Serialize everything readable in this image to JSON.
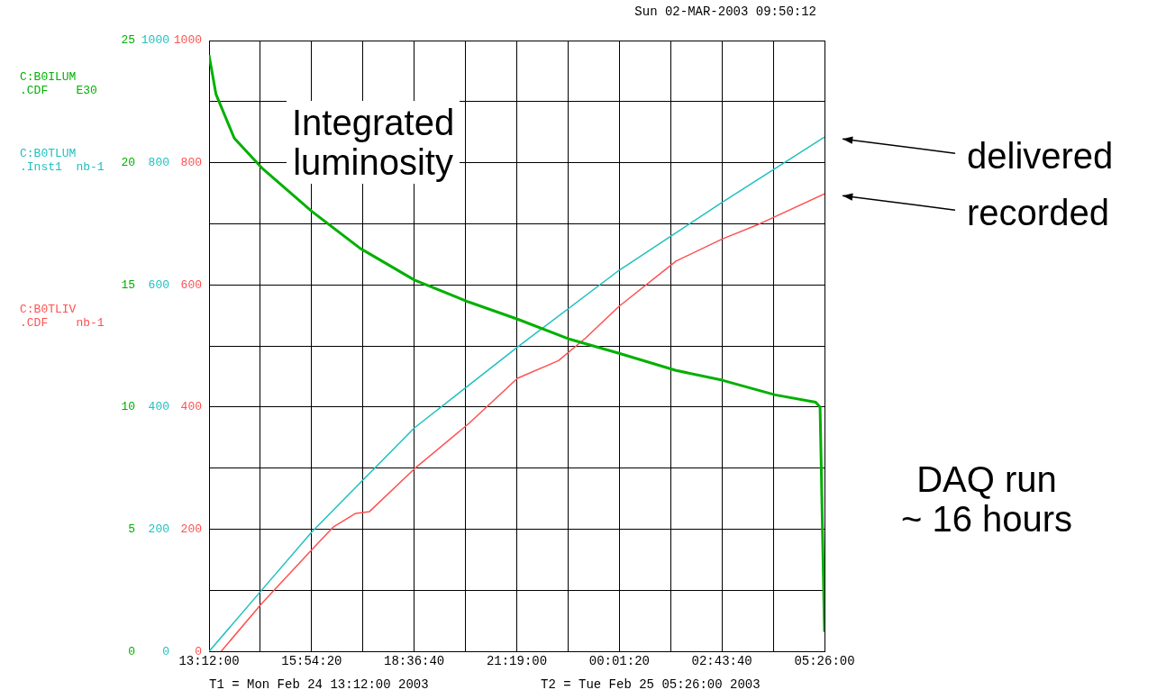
{
  "chart_data": {
    "type": "line",
    "ylabel": "C:B0ILUM\n.CDF    E30",
    "annotations": [
      "Sun 02-MAR-2003 09:50:12",
      "T1 = Mon Feb 24 13:12:00 2003",
      "T2 = Tue Feb 25 05:26:00 2003",
      "Integrated\nluminosity",
      "DAQ run\n~ 16 hours",
      "C:B0TLUM\n.Inst1  nb-1",
      "C:B0TLIV\n.CDF    nb-1"
    ],
    "xlim": [
      "2003-02-24T13:12:00",
      "2003-02-25T05:26:00"
    ],
    "xticks": [
      {
        "value": "2003-02-24T13:12:00",
        "label": "13:12:00"
      },
      {
        "value": "2003-02-24T14:33:10",
        "label": null
      },
      {
        "value": "2003-02-24T15:54:20",
        "label": "15:54:20"
      },
      {
        "value": "2003-02-24T17:15:30",
        "label": null
      },
      {
        "value": "2003-02-24T18:36:40",
        "label": "18:36:40"
      },
      {
        "value": "2003-02-24T19:57:50",
        "label": null
      },
      {
        "value": "2003-02-24T21:19:00",
        "label": "21:19:00"
      },
      {
        "value": "2003-02-24T22:40:10",
        "label": null
      },
      {
        "value": "2003-02-25T00:01:20",
        "label": "00:01:20"
      },
      {
        "value": "2003-02-25T01:22:30",
        "label": null
      },
      {
        "value": "2003-02-25T02:43:40",
        "label": "02:43:40"
      },
      {
        "value": "2003-02-25T04:04:50",
        "label": null
      },
      {
        "value": "2003-02-25T05:26:00",
        "label": "05:26:00"
      }
    ],
    "ylim": [
      0,
      25
    ],
    "yticks": [
      0,
      {
        "value": 2.5,
        "label": null
      },
      5,
      {
        "value": 7.5,
        "label": null
      },
      10,
      {
        "value": 12.5,
        "label": null
      },
      15,
      {
        "value": 17.5,
        "label": null
      },
      20,
      {
        "value": 22.5,
        "label": null
      },
      25
    ],
    "y3lim": [
      0,
      1000
    ],
    "y3ticks": [
      0,
      200,
      400,
      600,
      800,
      1000
    ],
    "y2lim": [
      0,
      1000
    ],
    "y2ticks": [
      0,
      200,
      400,
      600,
      800,
      1000
    ],
    "grid": true,
    "legend": false,
    "marker": "none",
    "line_style": "solid",
    "series": [
      {
        "color": "#00b000",
        "axis": "y",
        "x": [
          "2003-02-24T13:12",
          "2003-02-24T13:23",
          "2003-02-24T13:52",
          "2003-02-24T14:35",
          "2003-02-24T15:55",
          "2003-02-24T17:11",
          "2003-02-24T18:37",
          "2003-02-24T20:03",
          "2003-02-24T21:20",
          "2003-02-24T22:40",
          "2003-02-25T00:01",
          "2003-02-25T01:31",
          "2003-02-25T02:44",
          "2003-02-25T04:08",
          "2003-02-25T05:12",
          "2003-02-25T05:19",
          "2003-02-25T05:22",
          "2003-02-25T05:26"
        ],
        "values": [
          24.4,
          22.8,
          21.0,
          19.8,
          18.0,
          16.5,
          15.2,
          14.3,
          13.6,
          12.8,
          12.2,
          11.5,
          11.1,
          10.5,
          10.2,
          10.0,
          6,
          0.8
        ]
      },
      {
        "name": "delivered",
        "color": "#20c0c0",
        "axis": "y3",
        "x": [
          "2003-02-24T13:12",
          "2003-02-24T14:35",
          "2003-02-24T15:55",
          "2003-02-24T18:37",
          "2003-02-24T21:20",
          "2003-02-25T00:01",
          "2003-02-25T02:44",
          "2003-02-25T05:26"
        ],
        "values": [
          0,
          100,
          196,
          366,
          498,
          624,
          735,
          842
        ]
      },
      {
        "name": "recorded",
        "color": "#ff5050",
        "axis": "y2",
        "x": [
          "2003-02-24T13:31",
          "2003-02-24T14:35",
          "2003-02-24T15:55",
          "2003-02-24T16:29",
          "2003-02-24T17:04",
          "2003-02-24T17:26",
          "2003-02-24T18:37",
          "2003-02-24T20:03",
          "2003-02-24T21:20",
          "2003-02-24T22:25",
          "2003-02-24T23:08",
          "2003-02-25T00:01",
          "2003-02-25T01:31",
          "2003-02-25T02:44",
          "2003-02-25T03:39",
          "2003-02-25T05:26"
        ],
        "values": [
          0,
          78,
          167,
          204,
          226,
          229,
          299,
          373,
          447,
          476,
          513,
          565,
          639,
          675,
          698,
          749
        ]
      }
    ]
  }
}
